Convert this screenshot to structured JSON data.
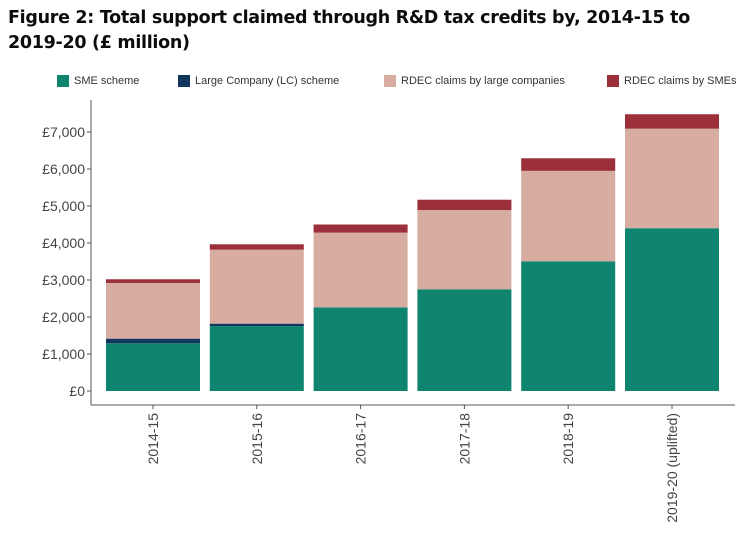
{
  "chart_data": {
    "type": "bar",
    "stacked": true,
    "title": "Figure 2: Total support claimed through R&D tax credits by, 2014-15 to 2019-20 (£ million)",
    "xlabel": "",
    "ylabel": "",
    "ylim": [
      0,
      7500
    ],
    "yticks": [
      0,
      1000,
      2000,
      3000,
      4000,
      5000,
      6000,
      7000
    ],
    "ytick_labels": [
      "£0",
      "£1,000",
      "£2,000",
      "£3,000",
      "£4,000",
      "£5,000",
      "£6,000",
      "£7,000"
    ],
    "categories": [
      "2014-15",
      "2015-16",
      "2016-17",
      "2017-18",
      "2018-19",
      "2019-20 (uplifted)"
    ],
    "legend_position": "top",
    "grid": false,
    "series": [
      {
        "name": "SME scheme",
        "color": "#0f8570",
        "values": [
          1290,
          1755,
          2260,
          2750,
          3505,
          4400
        ]
      },
      {
        "name": "Large Company (LC) scheme",
        "color": "#12375f",
        "values": [
          125,
          65,
          0,
          0,
          0,
          0
        ]
      },
      {
        "name": "RDEC claims by large companies",
        "color": "#d8ada1",
        "values": [
          1505,
          2000,
          2020,
          2140,
          2445,
          2690
        ]
      },
      {
        "name": "RDEC claims by SMEs",
        "color": "#9b2f3a",
        "values": [
          100,
          145,
          220,
          280,
          340,
          390
        ]
      }
    ]
  }
}
